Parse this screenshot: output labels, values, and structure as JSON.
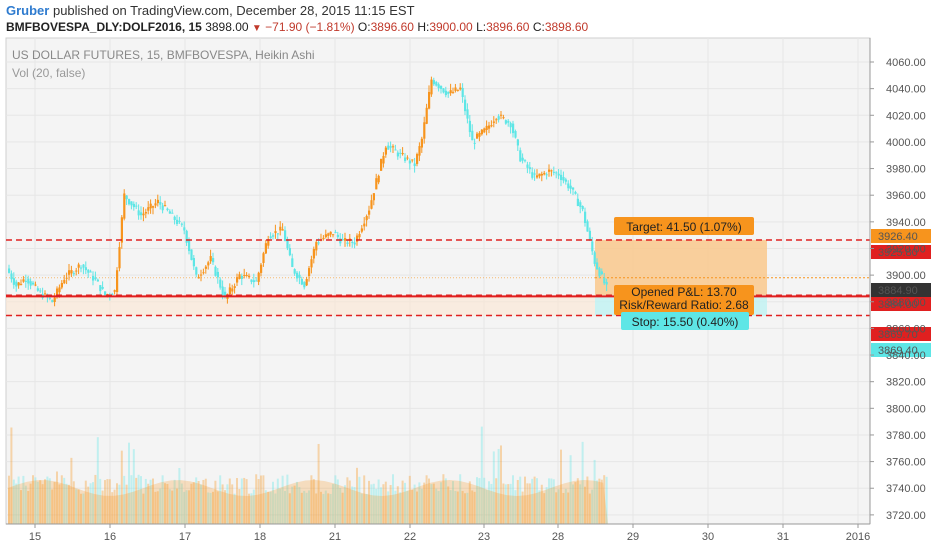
{
  "header": {
    "user": "Gruber",
    "published_text": "published on TradingView.com, December 28, 2015 11:15 EST",
    "symbol": "BMFBOVESPA_DLY:DOLF2016, 15",
    "last": "3898.00",
    "change": "−71.90 (−1.81%)",
    "o_label": "O:",
    "o_value": "3896.60",
    "h_label": "H:",
    "h_value": "3900.00",
    "l_label": "L:",
    "l_value": "3896.60",
    "c_label": "C:",
    "c_value": "3898.60"
  },
  "overlay": {
    "title": "US DOLLAR FUTURES, 15, BMFBOVESPA, Heikin Ashi",
    "vol": "Vol (20, false)"
  },
  "colors": {
    "up": "#f7941d",
    "down": "#5ee6e6",
    "red_line": "#e02020",
    "target_box": "#f9c88c",
    "stop_box": "#fce6d2",
    "grid": "#e6e6e6"
  },
  "chart_data": {
    "type": "candlestick",
    "style": "Heikin Ashi",
    "ylim": [
      3710,
      4070
    ],
    "y_ticks": [
      "4060.00",
      "4040.00",
      "4020.00",
      "4000.00",
      "3980.00",
      "3960.00",
      "3940.00",
      "3920.00",
      "3900.00",
      "3880.00",
      "3860.00",
      "3840.00",
      "3820.00",
      "3800.00",
      "3780.00",
      "3760.00",
      "3740.00",
      "3720.00"
    ],
    "x_ticks": [
      "15",
      "16",
      "17",
      "18",
      "21",
      "22",
      "23",
      "28",
      "29",
      "30",
      "31",
      "2016"
    ],
    "price_path": [
      [
        0,
        3905
      ],
      [
        4,
        3892
      ],
      [
        8,
        3898
      ],
      [
        13,
        3888
      ],
      [
        19,
        3880
      ],
      [
        24,
        3898
      ],
      [
        31,
        3908
      ],
      [
        37,
        3896
      ],
      [
        41,
        3885
      ],
      [
        45,
        3888
      ],
      [
        49,
        3960
      ],
      [
        56,
        3945
      ],
      [
        63,
        3955
      ],
      [
        68,
        3946
      ],
      [
        74,
        3934
      ],
      [
        79,
        3898
      ],
      [
        85,
        3912
      ],
      [
        91,
        3882
      ],
      [
        97,
        3900
      ],
      [
        104,
        3895
      ],
      [
        109,
        3930
      ],
      [
        115,
        3934
      ],
      [
        119,
        3905
      ],
      [
        124,
        3893
      ],
      [
        129,
        3925
      ],
      [
        136,
        3932
      ],
      [
        140,
        3925
      ],
      [
        145,
        3925
      ],
      [
        151,
        3950
      ],
      [
        158,
        3998
      ],
      [
        164,
        3990
      ],
      [
        170,
        3983
      ],
      [
        173,
        4002
      ],
      [
        177,
        4047
      ],
      [
        184,
        4036
      ],
      [
        189,
        4040
      ],
      [
        194,
        4000
      ],
      [
        200,
        4010
      ],
      [
        204,
        4020
      ],
      [
        210,
        4014
      ],
      [
        214,
        3988
      ],
      [
        220,
        3973
      ],
      [
        226,
        3978
      ],
      [
        230,
        3976
      ],
      [
        235,
        3965
      ],
      [
        240,
        3948
      ],
      [
        245,
        3910
      ],
      [
        250,
        3890
      ]
    ],
    "levels": [
      {
        "label": "3926.40",
        "value": 3926.4,
        "color": "#e02020",
        "style": "dashed",
        "tag_bg": "#f7941d"
      },
      {
        "label": "3925.80",
        "value": 3925.8,
        "color": "#e02020",
        "style": "none",
        "tag_bg": "#e02020"
      },
      {
        "label": "3884.90",
        "value": 3884.9,
        "color": "#e02020",
        "style": "dashed",
        "tag_bg": "#333333"
      },
      {
        "label": "3884.00",
        "value": 3884.0,
        "color": "#e02020",
        "style": "solid",
        "tag_bg": "#e02020"
      },
      {
        "label": "3869.70",
        "value": 3869.7,
        "color": "#e02020",
        "style": "dashed",
        "tag_bg": "#e02020"
      },
      {
        "label": "3869.40",
        "value": 3869.4,
        "color": "#e02020",
        "style": "none",
        "tag_bg": "#5ee6e6"
      }
    ],
    "last_price": 3898.0,
    "position": {
      "target_label": "Target: 41.50 (1.07%)",
      "opened_pl": "Opened P&L: 13.70",
      "risk_reward": "Risk/Reward Ratio: 2.68",
      "stop_label": "Stop: 15.50 (0.40%)",
      "entry": 3884.9,
      "target": 3926.4,
      "stop": 3869.4
    },
    "volume_max": 3795
  }
}
